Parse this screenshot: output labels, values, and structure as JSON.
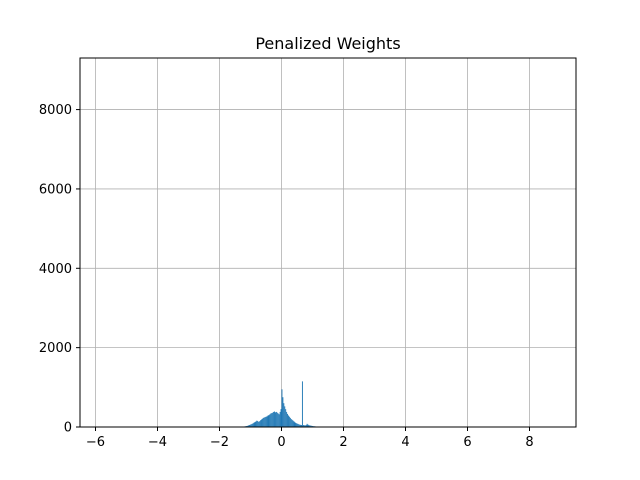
{
  "chart_data": {
    "type": "bar",
    "title": "Penalized Weights",
    "xlabel": "",
    "ylabel": "",
    "xlim": [
      -6.5,
      9.5
    ],
    "ylim": [
      0,
      9300
    ],
    "grid": true,
    "bar_color": "#1f77b4",
    "x_ticks": [
      -6,
      -4,
      -2,
      0,
      2,
      4,
      6,
      8
    ],
    "x_tick_labels": [
      "−6",
      "−4",
      "−2",
      "0",
      "2",
      "4",
      "6",
      "8"
    ],
    "y_ticks": [
      0,
      2000,
      4000,
      6000,
      8000
    ],
    "y_tick_labels": [
      "0",
      "2000",
      "4000",
      "6000",
      "8000"
    ],
    "bin_width": 0.03,
    "bin_starts": [
      -1.35,
      -1.32,
      -1.29,
      -1.26,
      -1.23,
      -1.2,
      -1.17,
      -1.14,
      -1.11,
      -1.08,
      -1.05,
      -1.02,
      -0.99,
      -0.96,
      -0.93,
      -0.9,
      -0.87,
      -0.84,
      -0.81,
      -0.78,
      -0.75,
      -0.72,
      -0.69,
      -0.66,
      -0.63,
      -0.6,
      -0.57,
      -0.54,
      -0.51,
      -0.48,
      -0.45,
      -0.42,
      -0.39,
      -0.36,
      -0.33,
      -0.3,
      -0.27,
      -0.24,
      -0.21,
      -0.18,
      -0.15,
      -0.12,
      -0.09,
      -0.06,
      -0.03,
      0.0,
      0.03,
      0.06,
      0.09,
      0.12,
      0.15,
      0.18,
      0.21,
      0.24,
      0.27,
      0.3,
      0.33,
      0.36,
      0.39,
      0.42,
      0.45,
      0.48,
      0.51,
      0.54,
      0.57,
      0.6,
      0.63,
      0.66,
      0.69,
      0.72,
      0.75,
      0.78,
      0.81,
      0.84,
      0.87,
      0.9,
      0.93,
      0.96,
      0.99,
      1.02,
      1.05,
      1.08,
      1.11,
      1.14,
      1.17,
      1.2,
      1.23,
      1.26,
      1.29,
      1.32,
      1.35,
      1.38,
      1.41,
      1.44,
      1.47,
      1.5
    ],
    "values": [
      5,
      6,
      8,
      10,
      12,
      15,
      20,
      25,
      30,
      40,
      50,
      60,
      70,
      80,
      95,
      110,
      125,
      140,
      160,
      150,
      130,
      145,
      170,
      190,
      210,
      230,
      240,
      250,
      260,
      270,
      290,
      300,
      320,
      340,
      350,
      360,
      380,
      390,
      370,
      380,
      360,
      340,
      320,
      380,
      450,
      950,
      750,
      600,
      520,
      450,
      380,
      330,
      290,
      260,
      230,
      200,
      180,
      160,
      140,
      120,
      100,
      90,
      80,
      70,
      60,
      55,
      50,
      1150,
      50,
      45,
      40,
      50,
      80,
      60,
      45,
      40,
      35,
      30,
      25,
      20,
      18,
      15,
      12,
      10,
      8,
      7,
      6,
      5,
      4,
      3,
      3,
      2,
      2,
      2,
      1,
      1
    ]
  }
}
